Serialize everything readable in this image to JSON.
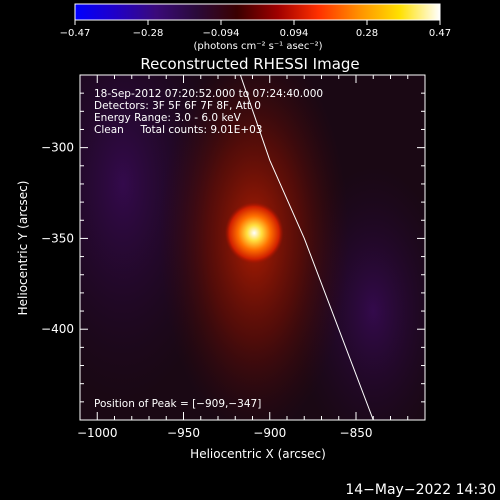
{
  "colorbar": {
    "tick_labels": [
      "−0.47",
      "−0.28",
      "−0.094",
      "0.094",
      "0.28",
      "0.47"
    ],
    "range": [
      -0.47,
      0.47
    ],
    "unit_label": "(photons cm⁻² s⁻¹ asec⁻²)",
    "colormap": [
      "#0000ff",
      "#2000c8",
      "#3a0a7a",
      "#2a0a3a",
      "#3a0000",
      "#a00000",
      "#ff3000",
      "#ff9000",
      "#ffe000",
      "#ffffff"
    ]
  },
  "chart_data": {
    "type": "heatmap",
    "title": "Reconstructed RHESSI Image",
    "xlabel": "Heliocentric X (arcsec)",
    "ylabel": "Heliocentric Y (arcsec)",
    "xlim": [
      -1010,
      -810
    ],
    "ylim": [
      -450,
      -260
    ],
    "x_ticks": [
      -1000,
      -950,
      -900,
      -850
    ],
    "x_tick_labels": [
      "−1000",
      "−950",
      "−900",
      "−850"
    ],
    "y_ticks": [
      -300,
      -350,
      -400
    ],
    "y_tick_labels": [
      "−300",
      "−350",
      "−400"
    ],
    "grid": false,
    "peak": {
      "x": -909,
      "y": -347,
      "value": 0.47
    },
    "limb_line": [
      [
        -917,
        -260
      ],
      [
        -900,
        -307
      ],
      [
        -880,
        -350
      ],
      [
        -860,
        -400
      ],
      [
        -840,
        -450
      ]
    ],
    "info_lines": [
      "18-Sep-2012 07:20:52.000 to 07:24:40.000",
      "Detectors: 3F 5F 6F 7F 8F, Att 0",
      "Energy Range: 3.0 - 6.0 keV",
      "Clean     Total counts: 9.01E+03"
    ],
    "peak_label": "Position of Peak = [−909,−347]"
  },
  "footer": {
    "date": "14−May−2022 14:30"
  }
}
